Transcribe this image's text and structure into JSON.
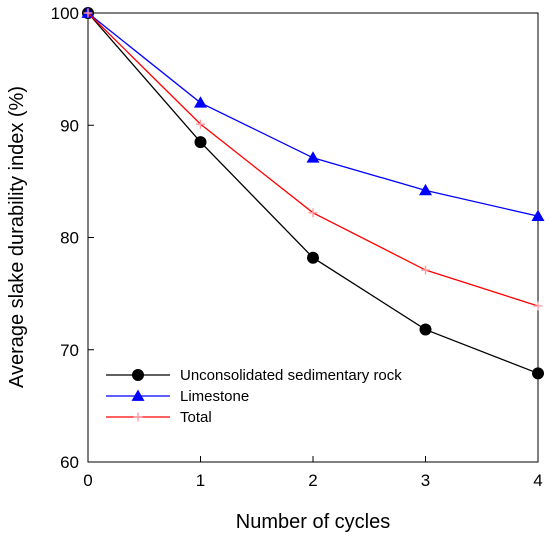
{
  "chart_data": {
    "type": "line",
    "xlabel": "Number of cycles",
    "ylabel": "Average slake durability index (%)",
    "x": [
      0,
      1,
      2,
      3,
      4
    ],
    "xlim": [
      0,
      4
    ],
    "ylim": [
      60,
      100
    ],
    "xticks": [
      "0",
      "1",
      "2",
      "3",
      "4"
    ],
    "yticks": [
      "60",
      "70",
      "80",
      "90",
      "100"
    ],
    "legend_position": "lower-left",
    "grid": false,
    "series": [
      {
        "name": "Unconsolidated sedimentary rock",
        "values": [
          100,
          88.5,
          78.2,
          71.8,
          67.9
        ],
        "color": "#000000",
        "marker": "circle"
      },
      {
        "name": "Limestone",
        "values": [
          100,
          92.0,
          87.1,
          84.2,
          81.9
        ],
        "color": "#0000ff",
        "marker": "triangle"
      },
      {
        "name": "Total",
        "values": [
          100,
          90.1,
          82.2,
          77.1,
          73.9
        ],
        "color": "#ff0000",
        "marker": "plus"
      }
    ]
  }
}
